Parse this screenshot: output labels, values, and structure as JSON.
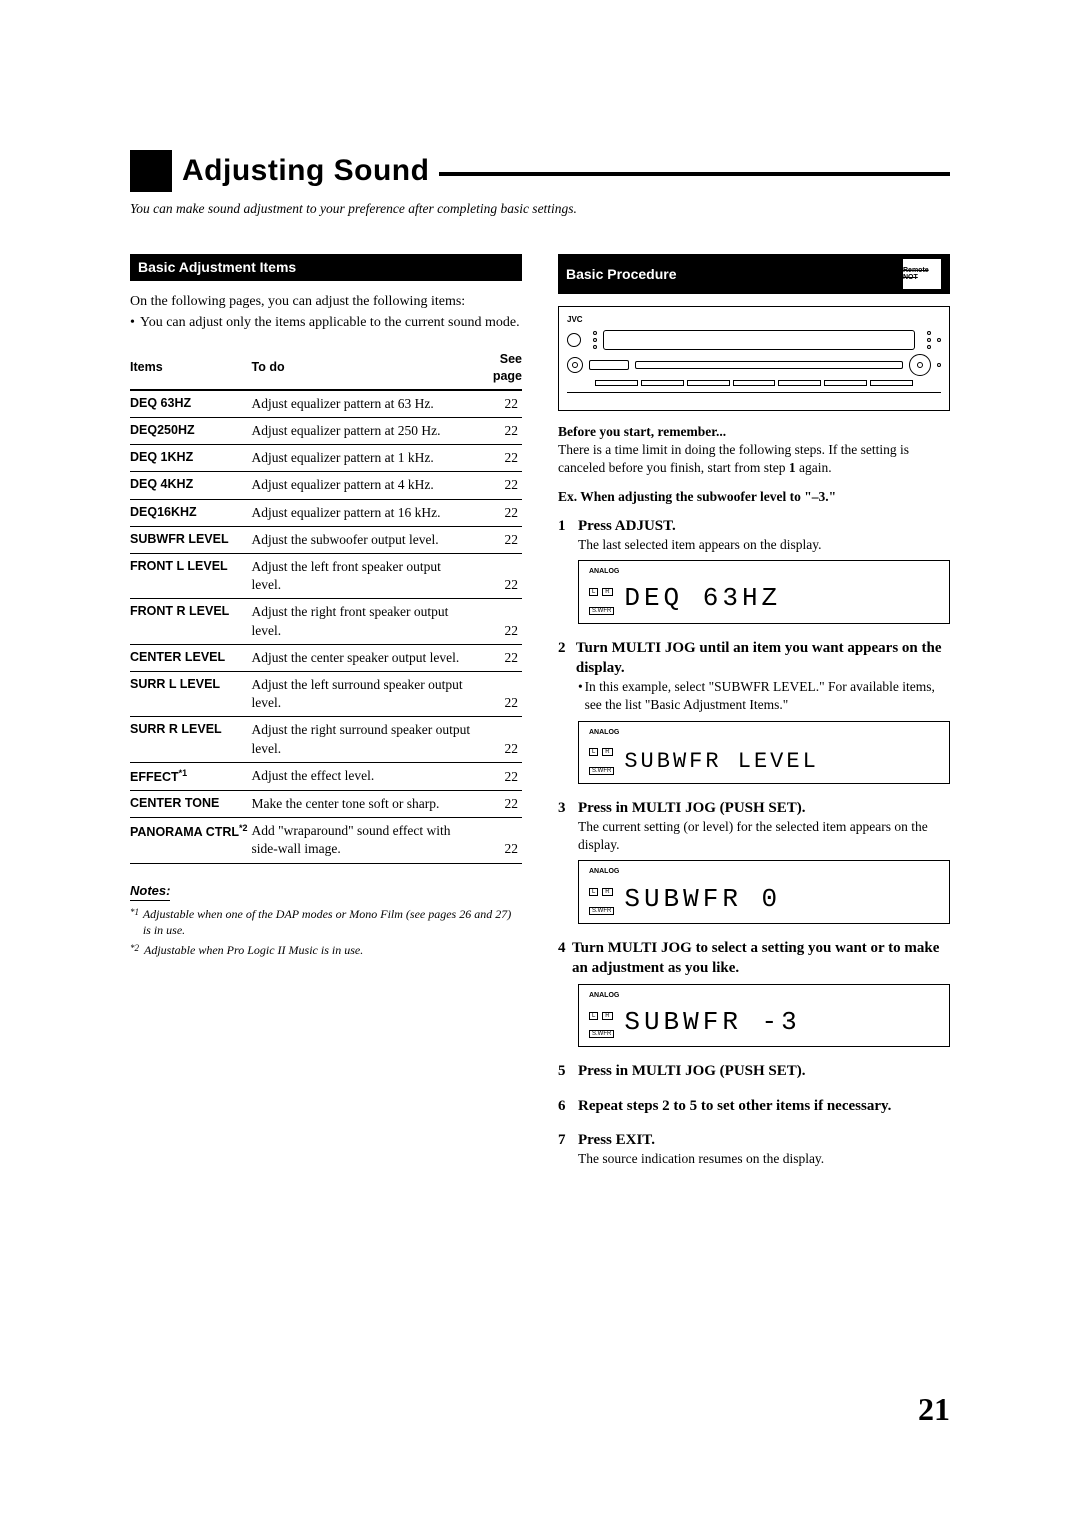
{
  "title": "Adjusting Sound",
  "subtitle": "You can make sound adjustment to your preference after completing basic settings.",
  "page_number": "21",
  "left": {
    "section_title": "Basic Adjustment Items",
    "intro_line1": "On the following pages, you can adjust the following items:",
    "intro_bullet": "You can adjust only the items applicable to the current sound mode.",
    "table_headers": {
      "items": "Items",
      "todo": "To do",
      "page": "See page"
    },
    "rows": [
      {
        "name": "DEQ 63HZ",
        "todo": "Adjust equalizer pattern at 63 Hz.",
        "page": "22"
      },
      {
        "name": "DEQ250HZ",
        "todo": "Adjust equalizer pattern at 250 Hz.",
        "page": "22"
      },
      {
        "name": "DEQ 1KHZ",
        "todo": "Adjust equalizer pattern at 1 kHz.",
        "page": "22"
      },
      {
        "name": "DEQ 4KHZ",
        "todo": "Adjust equalizer pattern at 4 kHz.",
        "page": "22"
      },
      {
        "name": "DEQ16KHZ",
        "todo": "Adjust equalizer pattern at 16 kHz.",
        "page": "22"
      },
      {
        "name": "SUBWFR LEVEL",
        "todo": "Adjust the subwoofer output level.",
        "page": "22"
      },
      {
        "name": "FRONT L LEVEL",
        "todo": "Adjust the left front speaker output level.",
        "page": "22"
      },
      {
        "name": "FRONT R LEVEL",
        "todo": "Adjust the right front speaker output level.",
        "page": "22"
      },
      {
        "name": "CENTER LEVEL",
        "todo": "Adjust the center speaker output level.",
        "page": "22"
      },
      {
        "name": "SURR L LEVEL",
        "todo": "Adjust the left surround speaker output level.",
        "page": "22"
      },
      {
        "name": "SURR R LEVEL",
        "todo": "Adjust the right surround speaker output level.",
        "page": "22"
      },
      {
        "name": "EFFECT",
        "sup": "*1",
        "todo": "Adjust the effect level.",
        "page": "22"
      },
      {
        "name": "CENTER TONE",
        "todo": "Make the center tone soft or sharp.",
        "page": "22"
      },
      {
        "name": "PANORAMA CTRL",
        "sup": "*2",
        "todo": "Add \"wraparound\" sound effect with side-wall image.",
        "page": "22"
      }
    ],
    "notes_title": "Notes:",
    "notes": [
      {
        "idx": "*1",
        "text": "Adjustable when one of the DAP modes or Mono Film (see pages 26 and 27) is in use."
      },
      {
        "idx": "*2",
        "text": "Adjustable when Pro Logic II Music is in use."
      }
    ]
  },
  "right": {
    "section_title": "Basic Procedure",
    "remote_label": "Remote NOT",
    "brand": "JVC",
    "before_title": "Before you start, remember...",
    "before_text_a": "There is a time limit in doing the following steps. If the setting is canceled before you finish, start from step ",
    "before_text_bold": "1",
    "before_text_b": " again.",
    "ex_line": "Ex. When adjusting the subwoofer level to \"–3.\"",
    "lcd_analog": "ANALOG",
    "lcd_L": "L",
    "lcd_R": "R",
    "lcd_swfr": "S.WFR",
    "steps": [
      {
        "num": "1",
        "title": "Press ADJUST.",
        "body": "The last selected item appears on the display.",
        "lcd": "DEQ  63HZ"
      },
      {
        "num": "2",
        "title": "Turn MULTI JOG until an item you want appears on the display.",
        "bullet": "In this example, select \"SUBWFR LEVEL.\" For available items, see the list \"Basic Adjustment Items.\"",
        "lcd": "SUBWFR  LEVEL",
        "lcd_wide": true
      },
      {
        "num": "3",
        "title": "Press in MULTI JOG (PUSH SET).",
        "body": "The current setting (or level) for the selected item appears on the display.",
        "lcd": "SUBWFR     0"
      },
      {
        "num": "4",
        "title": "Turn MULTI JOG to select a setting you want or to make an adjustment as you like.",
        "lcd": "SUBWFR    -3"
      },
      {
        "num": "5",
        "title": "Press in MULTI JOG (PUSH SET)."
      },
      {
        "num": "6",
        "title": "Repeat steps 2 to 5 to set other items if necessary."
      },
      {
        "num": "7",
        "title": "Press EXIT.",
        "body": "The source indication resumes on the display."
      }
    ]
  }
}
